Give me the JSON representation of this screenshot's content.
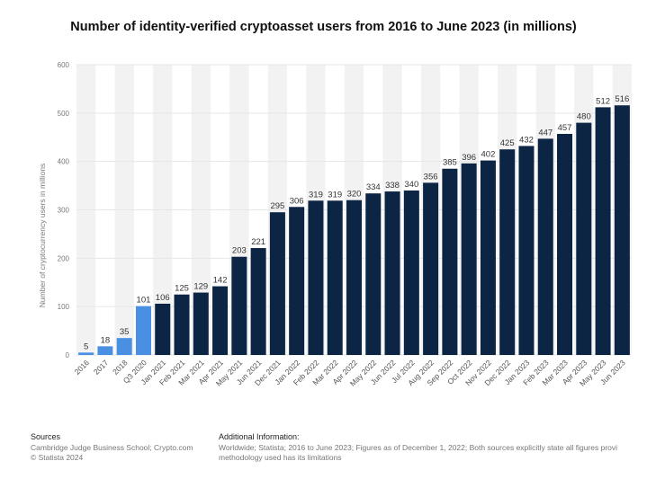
{
  "chart_data": {
    "type": "bar",
    "title": "Number of identity-verified cryptoasset users from 2016 to June 2023 (in millions)",
    "ylabel": "Number of cryptocurrency users in millions",
    "xlabel": "",
    "ylim": [
      0,
      600
    ],
    "yticks": [
      0,
      100,
      200,
      300,
      400,
      500,
      600
    ],
    "grid": true,
    "categories": [
      "2016",
      "2017",
      "2018",
      "Q3 2020",
      "Jan 2021",
      "Feb 2021",
      "Mar 2021",
      "Apr 2021",
      "May 2021",
      "Jun 2021",
      "Dec 2021",
      "Jan 2022",
      "Feb 2022",
      "Mar 2022",
      "Apr 2022",
      "May 2022",
      "Jun 2022",
      "Jul 2022",
      "Aug 2022",
      "Sep 2022",
      "Oct 2022",
      "Nov 2022",
      "Dec 2022",
      "Jan 2023",
      "Feb 2023",
      "Mar 2023",
      "Apr 2023",
      "May 2023",
      "Jun 2023"
    ],
    "values": [
      5,
      18,
      35,
      101,
      106,
      125,
      129,
      142,
      203,
      221,
      295,
      306,
      319,
      319,
      320,
      334,
      338,
      340,
      356,
      385,
      396,
      402,
      425,
      432,
      447,
      457,
      480,
      512,
      516
    ],
    "colors": {
      "highlight": "#4a90e2",
      "default": "#0d2544",
      "highlight_count": 4,
      "column_shade": "#f2f2f2",
      "grid": "#e6e6e6"
    }
  },
  "footer": {
    "sources_heading": "Sources",
    "sources_line1": "Cambridge Judge Business School; Crypto.com",
    "sources_line2": "© Statista 2024",
    "additional_heading": "Additional Information:",
    "additional_line1": "Worldwide; Statista; 2016 to June 2023; Figures as of December 1, 2022; Both sources explicitly state all figures provi",
    "additional_line2": "methodology used has its limitations"
  }
}
